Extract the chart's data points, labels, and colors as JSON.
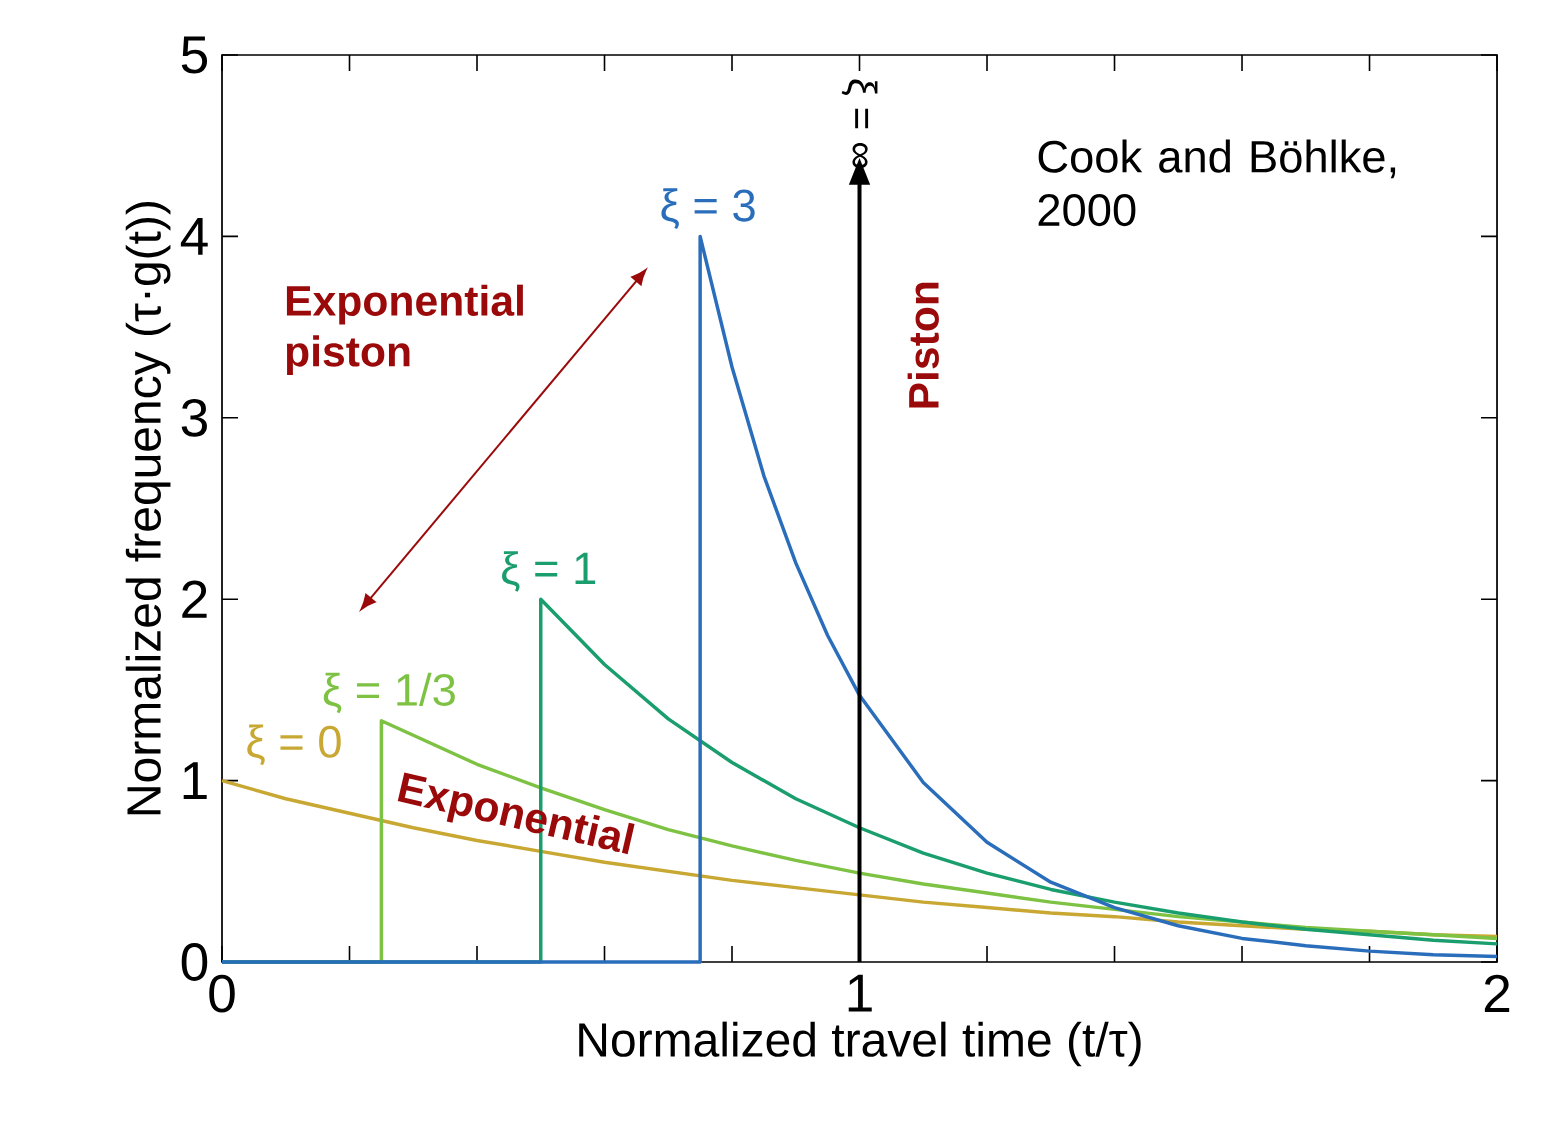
{
  "chart_data": {
    "type": "line",
    "xlabel": "Normalized travel time (t/τ)",
    "ylabel": "Normalized frequency (τ·g(t))",
    "xlim": [
      0,
      2
    ],
    "ylim": [
      0,
      5
    ],
    "xticks": [
      0,
      {
        "value": 0.2,
        "label": null
      },
      {
        "value": 0.4,
        "label": null
      },
      {
        "value": 0.6,
        "label": null
      },
      {
        "value": 0.8,
        "label": null
      },
      1,
      {
        "value": 1.2,
        "label": null
      },
      {
        "value": 1.4,
        "label": null
      },
      {
        "value": 1.6,
        "label": null
      },
      {
        "value": 1.8,
        "label": null
      },
      2
    ],
    "yticks": [
      0,
      1,
      2,
      3,
      4,
      5
    ],
    "series": [
      {
        "name": "ξ = 0",
        "color": "#c8a832",
        "x": [
          0,
          0.1,
          0.2,
          0.3,
          0.4,
          0.5,
          0.6,
          0.7,
          0.8,
          0.9,
          1.0,
          1.1,
          1.2,
          1.3,
          1.4,
          1.5,
          1.6,
          1.7,
          1.8,
          1.9,
          2.0
        ],
        "values": [
          1.0,
          0.9,
          0.82,
          0.74,
          0.67,
          0.61,
          0.55,
          0.5,
          0.45,
          0.41,
          0.37,
          0.33,
          0.3,
          0.27,
          0.25,
          0.22,
          0.2,
          0.18,
          0.17,
          0.15,
          0.14
        ]
      },
      {
        "name": "ξ = 1/3",
        "color": "#7dc242",
        "x": [
          0,
          0.25,
          0.25,
          0.3,
          0.4,
          0.5,
          0.6,
          0.7,
          0.8,
          0.9,
          1.0,
          1.1,
          1.2,
          1.3,
          1.4,
          1.5,
          1.6,
          1.7,
          1.8,
          1.9,
          2.0
        ],
        "values": [
          0,
          0,
          1.33,
          1.25,
          1.09,
          0.96,
          0.84,
          0.73,
          0.64,
          0.56,
          0.49,
          0.43,
          0.38,
          0.33,
          0.29,
          0.25,
          0.22,
          0.19,
          0.17,
          0.15,
          0.13
        ]
      },
      {
        "name": "ξ = 1",
        "color": "#1a9e6e",
        "x": [
          0,
          0.5,
          0.5,
          0.6,
          0.7,
          0.8,
          0.9,
          1.0,
          1.1,
          1.2,
          1.3,
          1.4,
          1.5,
          1.6,
          1.7,
          1.8,
          1.9,
          2.0
        ],
        "values": [
          0,
          0,
          2.0,
          1.64,
          1.34,
          1.1,
          0.9,
          0.74,
          0.6,
          0.49,
          0.4,
          0.33,
          0.27,
          0.22,
          0.18,
          0.15,
          0.12,
          0.1
        ]
      },
      {
        "name": "ξ = 3",
        "color": "#2a6ebb",
        "x": [
          0,
          0.75,
          0.75,
          0.8,
          0.85,
          0.9,
          0.95,
          1.0,
          1.1,
          1.2,
          1.3,
          1.4,
          1.5,
          1.6,
          1.7,
          1.8,
          1.9,
          2.0
        ],
        "values": [
          0,
          0,
          4.0,
          3.28,
          2.68,
          2.2,
          1.8,
          1.47,
          0.99,
          0.66,
          0.44,
          0.3,
          0.2,
          0.13,
          0.09,
          0.06,
          0.04,
          0.03
        ]
      }
    ],
    "ref_lines": [
      {
        "axis": "x",
        "value": 1,
        "label": "ξ = ∞",
        "color": "#000000"
      }
    ],
    "annotations": [
      "Cook and Böhlke, 2000",
      "Exponential piston",
      "Piston",
      "Exponential"
    ]
  }
}
